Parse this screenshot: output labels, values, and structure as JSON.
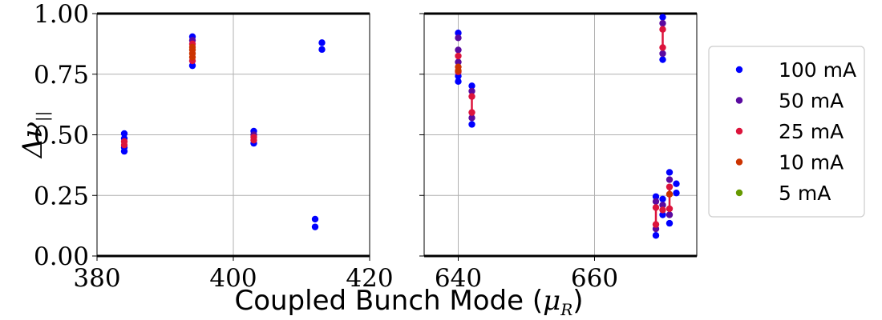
{
  "chart_data": {
    "type": "scatter",
    "xlabel": "Coupled Bunch Mode (",
    "xlabel_symbol": "μ",
    "xlabel_subscript": "R",
    "xlabel_close": ")",
    "ylabel_symbol": "Δν",
    "ylabel_subscript": "||",
    "ylim": [
      0,
      1
    ],
    "yticks": [
      "0.00",
      "0.25",
      "0.50",
      "0.75",
      "1.00"
    ],
    "ytick_values": [
      0,
      0.25,
      0.5,
      0.75,
      1.0
    ],
    "grid": true,
    "legend": {
      "placement": "right",
      "entries": [
        {
          "label": "100 mA",
          "color": "#0000ff"
        },
        {
          "label": "50 mA",
          "color": "#5a0aa0"
        },
        {
          "label": "25 mA",
          "color": "#dc143c"
        },
        {
          "label": "10 mA",
          "color": "#cc3300"
        },
        {
          "label": "5 mA",
          "color": "#669900"
        }
      ]
    },
    "panels": [
      {
        "xlim": [
          380,
          420
        ],
        "xticks": [
          "380",
          "400",
          "420"
        ],
        "xtick_values": [
          380,
          400,
          420
        ],
        "show_yticklabels": true,
        "points": [
          {
            "x": 384,
            "y": 0.432,
            "s": 0
          },
          {
            "x": 384,
            "y": 0.448,
            "s": 0
          },
          {
            "x": 384,
            "y": 0.485,
            "s": 0
          },
          {
            "x": 384,
            "y": 0.505,
            "s": 0
          },
          {
            "x": 384,
            "y": 0.458,
            "s": 2
          },
          {
            "x": 384,
            "y": 0.472,
            "s": 2
          },
          {
            "x": 394,
            "y": 0.785,
            "s": 0
          },
          {
            "x": 394,
            "y": 0.905,
            "s": 0
          },
          {
            "x": 394,
            "y": 0.89,
            "s": 1
          },
          {
            "x": 394,
            "y": 0.805,
            "s": 2
          },
          {
            "x": 394,
            "y": 0.875,
            "s": 2
          },
          {
            "x": 394,
            "y": 0.82,
            "s": 3
          },
          {
            "x": 394,
            "y": 0.835,
            "s": 3
          },
          {
            "x": 394,
            "y": 0.85,
            "s": 3
          },
          {
            "x": 394,
            "y": 0.862,
            "s": 3
          },
          {
            "x": 403,
            "y": 0.465,
            "s": 0
          },
          {
            "x": 403,
            "y": 0.515,
            "s": 0
          },
          {
            "x": 403,
            "y": 0.5,
            "s": 1
          },
          {
            "x": 403,
            "y": 0.478,
            "s": 2
          },
          {
            "x": 403,
            "y": 0.49,
            "s": 2
          },
          {
            "x": 412,
            "y": 0.12,
            "s": 0
          },
          {
            "x": 412,
            "y": 0.152,
            "s": 0
          },
          {
            "x": 413,
            "y": 0.852,
            "s": 0
          },
          {
            "x": 413,
            "y": 0.88,
            "s": 0
          }
        ],
        "segments": []
      },
      {
        "xlim": [
          635,
          675
        ],
        "xticks": [
          "640",
          "660"
        ],
        "xtick_values": [
          640,
          660
        ],
        "show_yticklabels": false,
        "points": [
          {
            "x": 640,
            "y": 0.72,
            "s": 0
          },
          {
            "x": 640,
            "y": 0.742,
            "s": 0
          },
          {
            "x": 640,
            "y": 0.92,
            "s": 0
          },
          {
            "x": 640,
            "y": 0.9,
            "s": 1
          },
          {
            "x": 640,
            "y": 0.85,
            "s": 1
          },
          {
            "x": 640,
            "y": 0.8,
            "s": 1
          },
          {
            "x": 640,
            "y": 0.76,
            "s": 2
          },
          {
            "x": 640,
            "y": 0.825,
            "s": 2
          },
          {
            "x": 640,
            "y": 0.78,
            "s": 3
          },
          {
            "x": 640,
            "y": 0.765,
            "s": 3
          },
          {
            "x": 642,
            "y": 0.543,
            "s": 0
          },
          {
            "x": 642,
            "y": 0.702,
            "s": 0
          },
          {
            "x": 642,
            "y": 0.57,
            "s": 1
          },
          {
            "x": 642,
            "y": 0.68,
            "s": 1
          },
          {
            "x": 642,
            "y": 0.592,
            "s": 2
          },
          {
            "x": 642,
            "y": 0.658,
            "s": 2
          },
          {
            "x": 669,
            "y": 0.085,
            "s": 0
          },
          {
            "x": 669,
            "y": 0.245,
            "s": 0
          },
          {
            "x": 669,
            "y": 0.112,
            "s": 1
          },
          {
            "x": 669,
            "y": 0.225,
            "s": 1
          },
          {
            "x": 669,
            "y": 0.2,
            "s": 2
          },
          {
            "x": 669,
            "y": 0.13,
            "s": 2
          },
          {
            "x": 670,
            "y": 0.17,
            "s": 0
          },
          {
            "x": 670,
            "y": 0.235,
            "s": 0
          },
          {
            "x": 670,
            "y": 0.21,
            "s": 1
          },
          {
            "x": 670,
            "y": 0.19,
            "s": 2
          },
          {
            "x": 670,
            "y": 0.81,
            "s": 0
          },
          {
            "x": 670,
            "y": 0.985,
            "s": 0
          },
          {
            "x": 670,
            "y": 0.835,
            "s": 1
          },
          {
            "x": 670,
            "y": 0.96,
            "s": 1
          },
          {
            "x": 670,
            "y": 0.86,
            "s": 2
          },
          {
            "x": 670,
            "y": 0.935,
            "s": 2
          },
          {
            "x": 671,
            "y": 0.135,
            "s": 0
          },
          {
            "x": 671,
            "y": 0.345,
            "s": 0
          },
          {
            "x": 671,
            "y": 0.17,
            "s": 1
          },
          {
            "x": 671,
            "y": 0.315,
            "s": 1
          },
          {
            "x": 671,
            "y": 0.195,
            "s": 2
          },
          {
            "x": 671,
            "y": 0.285,
            "s": 2
          },
          {
            "x": 671,
            "y": 0.255,
            "s": 3
          },
          {
            "x": 672,
            "y": 0.26,
            "s": 0
          },
          {
            "x": 672,
            "y": 0.298,
            "s": 0
          }
        ],
        "segments": [
          {
            "x": 640,
            "y1": 0.76,
            "y2": 0.825
          },
          {
            "x": 642,
            "y1": 0.592,
            "y2": 0.658
          },
          {
            "x": 669,
            "y1": 0.13,
            "y2": 0.2
          },
          {
            "x": 670,
            "y1": 0.86,
            "y2": 0.935
          },
          {
            "x": 671,
            "y1": 0.195,
            "y2": 0.285
          }
        ]
      }
    ]
  }
}
